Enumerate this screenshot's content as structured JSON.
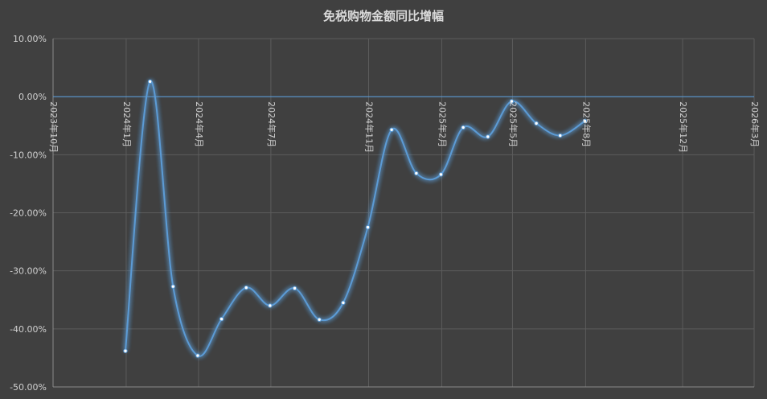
{
  "chart_data": {
    "type": "line",
    "title": "免税购物金额同比增幅",
    "xlabel": "",
    "ylabel": "",
    "y_unit": "percent",
    "ylim": [
      -50,
      10
    ],
    "yticks": [
      10,
      0,
      -10,
      -20,
      -30,
      -40,
      -50
    ],
    "ytick_labels": [
      "10.00%",
      "0.00%",
      "-10.00%",
      "-20.00%",
      "-30.00%",
      "-40.00%",
      "-50.00%"
    ],
    "xlim": [
      "2023-10-01",
      "2026-03-01"
    ],
    "xtick_dates": [
      "2023-10-01",
      "2024-01-01",
      "2024-04-01",
      "2024-07-01",
      "2024-11-01",
      "2025-02-01",
      "2025-05-01",
      "2025-08-01",
      "2025-12-01",
      "2026-03-01"
    ],
    "xtick_labels": [
      "2023年10月",
      "2024年1月",
      "2024年4月",
      "2024年7月",
      "2024年11月",
      "2025年2月",
      "2025年5月",
      "2025年8月",
      "2025年12月",
      "2026年3月"
    ],
    "grid": true,
    "smooth": true,
    "line_color": "#5b9bd5",
    "series": [
      {
        "name": "",
        "x": [
          "2023-12-31",
          "2024-01-31",
          "2024-02-29",
          "2024-03-31",
          "2024-04-30",
          "2024-05-31",
          "2024-06-30",
          "2024-07-31",
          "2024-08-31",
          "2024-09-30",
          "2024-10-31",
          "2024-11-30",
          "2024-12-31",
          "2025-01-31",
          "2025-02-28",
          "2025-03-31",
          "2025-04-30",
          "2025-05-31",
          "2025-06-30",
          "2025-07-31"
        ],
        "values": [
          -43.8,
          2.6,
          -32.7,
          -44.6,
          -38.3,
          -32.9,
          -36.0,
          -33.0,
          -38.4,
          -35.5,
          -22.5,
          -5.7,
          -13.2,
          -13.4,
          -5.3,
          -6.9,
          -0.8,
          -4.6,
          -6.7,
          -4.2
        ]
      }
    ]
  }
}
